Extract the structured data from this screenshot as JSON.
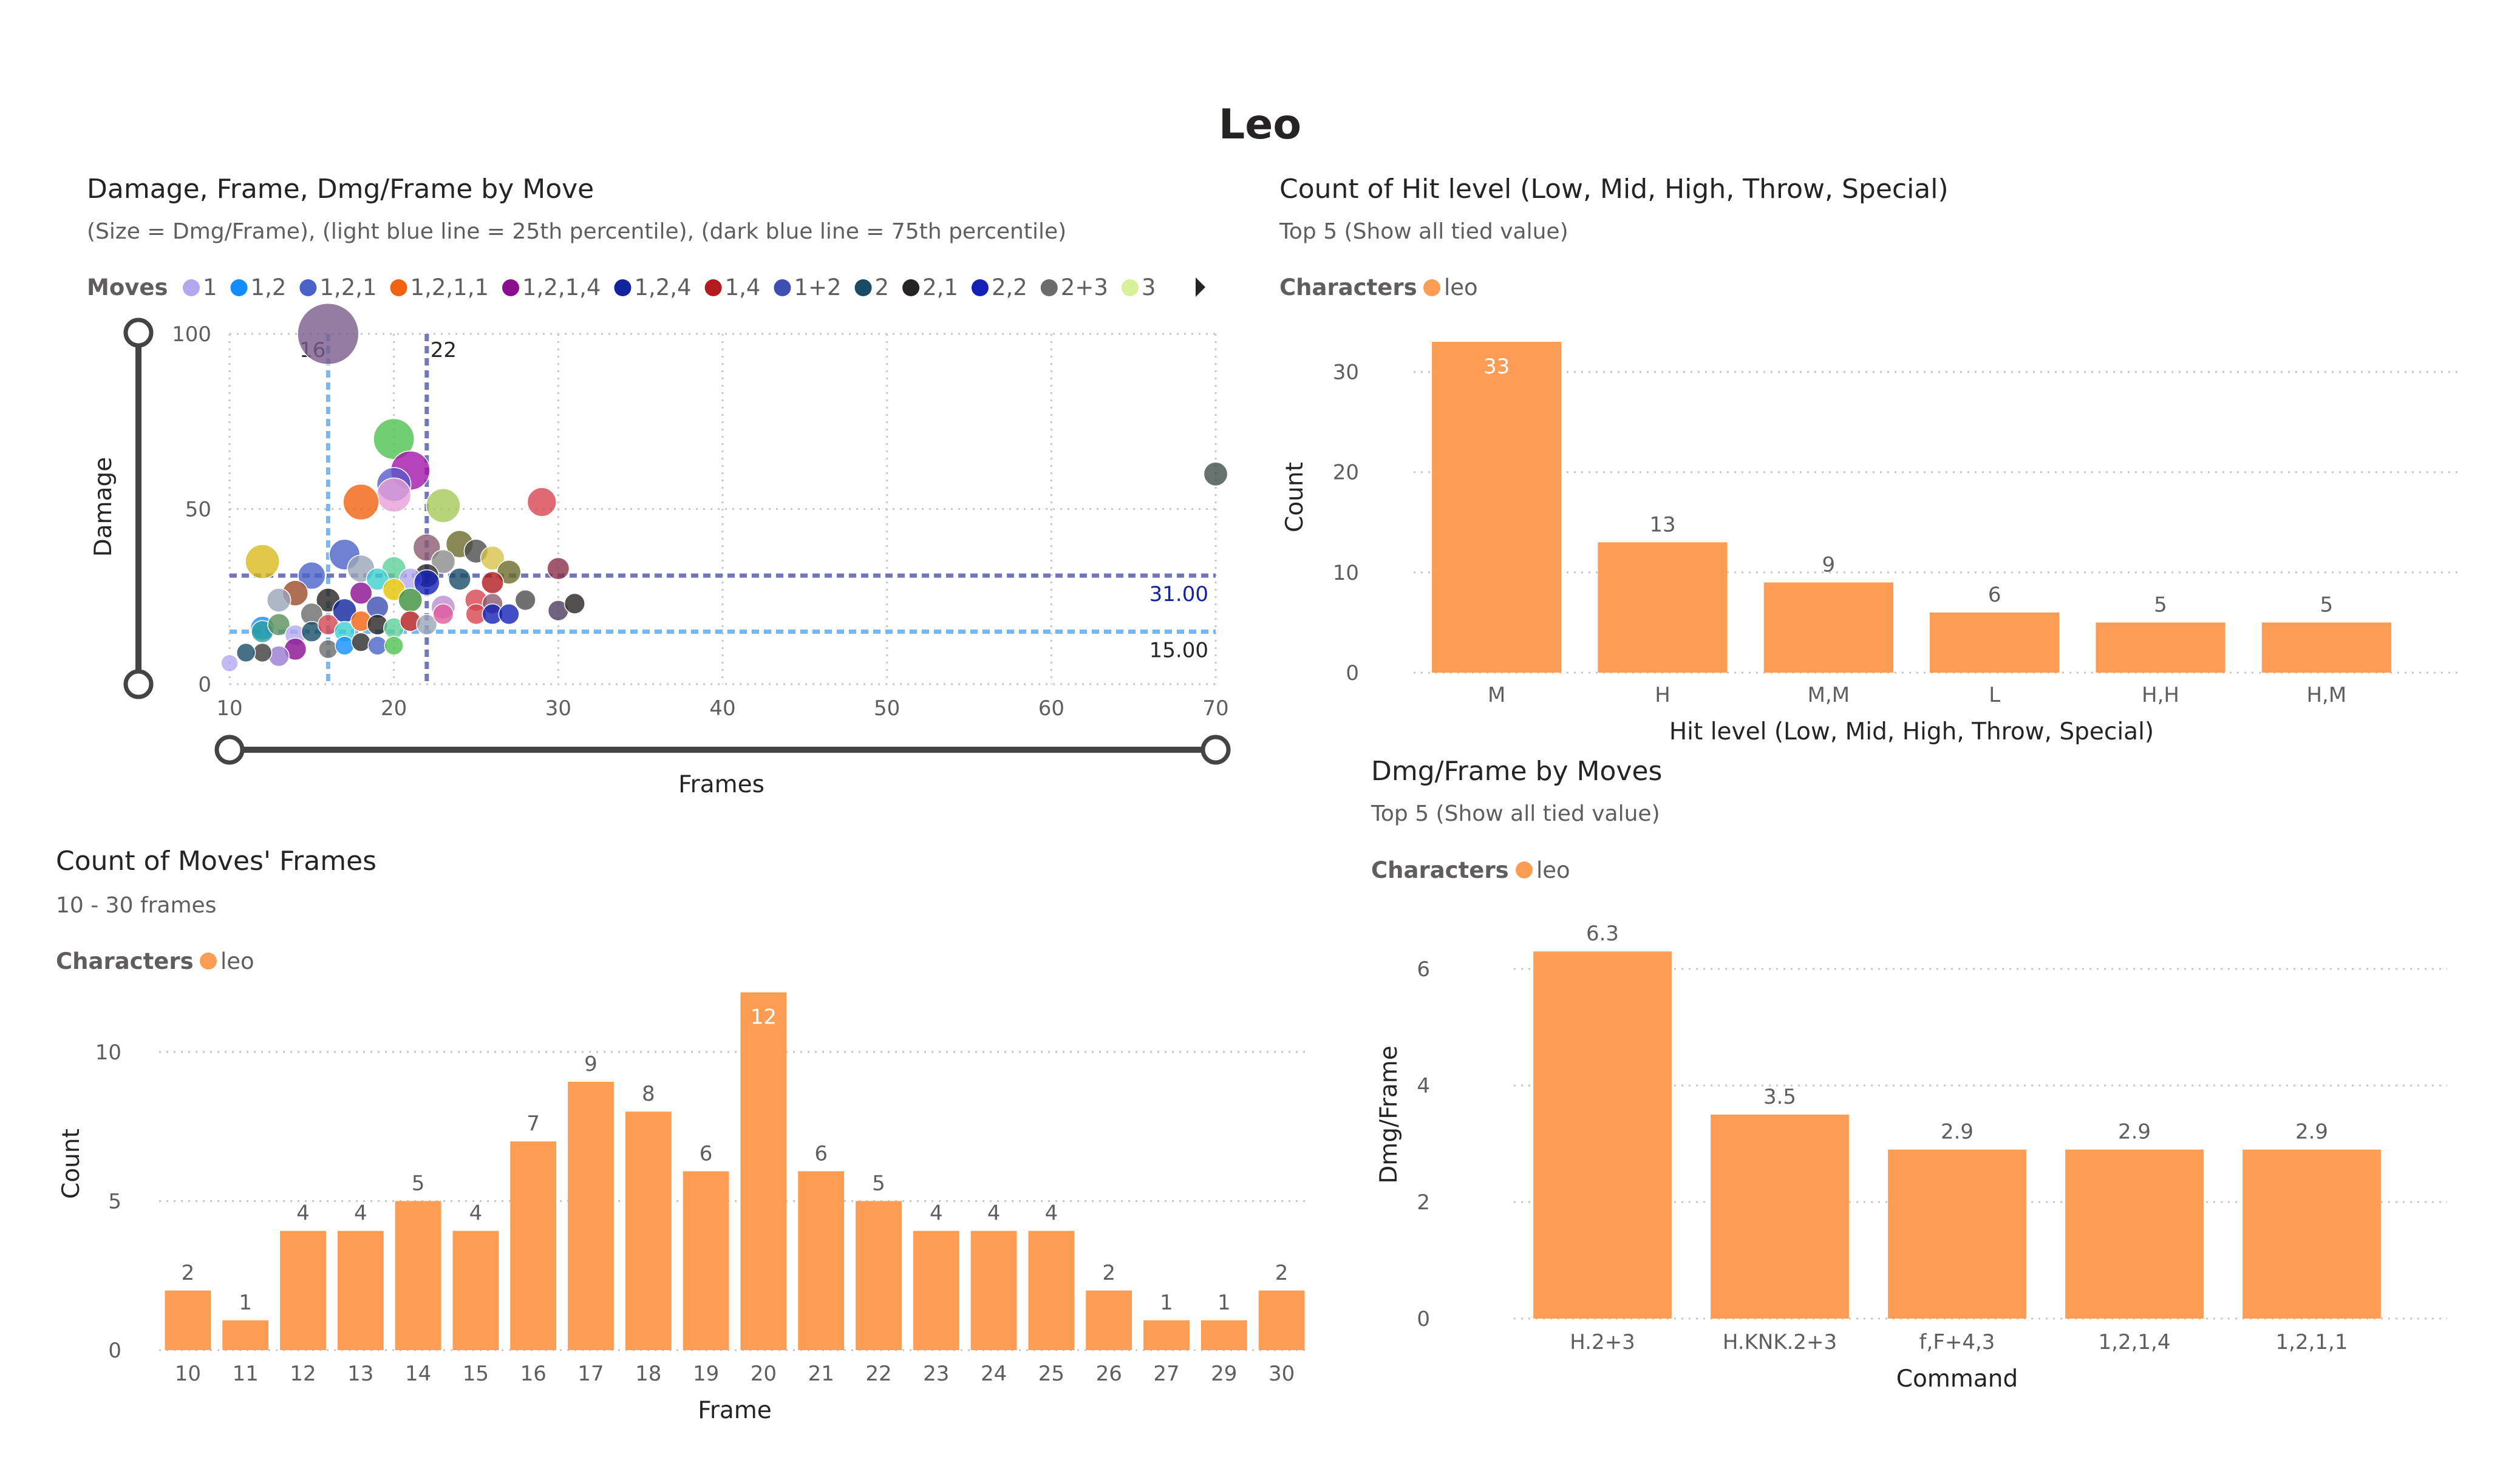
{
  "page_title": "Leo",
  "colors": {
    "bar": "#fd9d53",
    "q25_line": "#74b9f5",
    "q75_line": "#7077bf",
    "slider": "#444444"
  },
  "scatter": {
    "title": "Damage, Frame, Dmg/Frame by Move",
    "subtitle": "(Size = Dmg/Frame), (light blue line = 25th percentile), (dark blue line = 75th percentile)",
    "legend_title": "Moves",
    "legend_more_icon": "caret-right-icon",
    "legend": [
      {
        "name": "1",
        "color": "#b4a7f0"
      },
      {
        "name": "1,2",
        "color": "#118dff"
      },
      {
        "name": "1,2,1",
        "color": "#4a62c8"
      },
      {
        "name": "1,2,1,1",
        "color": "#f2620f"
      },
      {
        "name": "1,2,1,4",
        "color": "#8a0e8e"
      },
      {
        "name": "1,2,4",
        "color": "#12239e"
      },
      {
        "name": "1,4",
        "color": "#b31b1e"
      },
      {
        "name": "1+2",
        "color": "#3d4fb3"
      },
      {
        "name": "2",
        "color": "#194b66"
      },
      {
        "name": "2,1",
        "color": "#252423"
      },
      {
        "name": "2,2",
        "color": "#1420b5"
      },
      {
        "name": "2+3",
        "color": "#6b6b6b"
      },
      {
        "name": "3",
        "color": "#d7f09a"
      }
    ],
    "q25_x_label": "16",
    "q75_x_label": "22",
    "q75_y_label": "31.00",
    "q25_y_label": "15.00"
  },
  "hitlevel": {
    "title": "Count of Hit level (Low, Mid, High, Throw, Special)",
    "subtitle": "Top 5 (Show all tied value)",
    "legend_title": "Characters",
    "legend_item": "leo"
  },
  "frames": {
    "title": "Count of Moves' Frames",
    "subtitle": "10 - 30 frames",
    "legend_title": "Characters",
    "legend_item": "leo"
  },
  "dmgframe": {
    "title": "Dmg/Frame by Moves",
    "subtitle": "Top 5 (Show all tied value)",
    "legend_title": "Characters",
    "legend_item": "leo"
  },
  "chart_data": [
    {
      "type": "scatter",
      "title": "Damage, Frame, Dmg/Frame by Move",
      "xlabel": "Frames",
      "ylabel": "Damage",
      "xlim": [
        10,
        70
      ],
      "ylim": [
        0,
        100
      ],
      "xticks": [
        "10",
        "20",
        "30",
        "40",
        "50",
        "60",
        "70"
      ],
      "yticks": [
        "0",
        "50",
        "100"
      ],
      "reference_lines": {
        "x_25th": 16,
        "x_75th": 22,
        "y_75th": 31,
        "y_25th": 15
      },
      "points": [
        {
          "x": 16,
          "y": 100,
          "s": 3.6,
          "c": "#7a5b8c"
        },
        {
          "x": 20,
          "y": 70,
          "s": 2.4,
          "c": "#4fc24f"
        },
        {
          "x": 21,
          "y": 61,
          "s": 2.3,
          "c": "#a314a8"
        },
        {
          "x": 20,
          "y": 57,
          "s": 2.0,
          "c": "#5a59c9"
        },
        {
          "x": 20,
          "y": 54,
          "s": 2.0,
          "c": "#e6a0d6"
        },
        {
          "x": 18,
          "y": 52,
          "s": 2.1,
          "c": "#f2620f"
        },
        {
          "x": 23,
          "y": 51,
          "s": 2.0,
          "c": "#a5c95a"
        },
        {
          "x": 29,
          "y": 52,
          "s": 1.7,
          "c": "#d64550"
        },
        {
          "x": 70,
          "y": 60,
          "s": 1.4,
          "c": "#3f4f4a"
        },
        {
          "x": 12,
          "y": 35,
          "s": 2.0,
          "c": "#d9b91c"
        },
        {
          "x": 17,
          "y": 37,
          "s": 1.8,
          "c": "#4a62c8"
        },
        {
          "x": 15,
          "y": 31,
          "s": 1.6,
          "c": "#4a62c8"
        },
        {
          "x": 18,
          "y": 33,
          "s": 1.6,
          "c": "#9aa5b8"
        },
        {
          "x": 22,
          "y": 39,
          "s": 1.6,
          "c": "#8b5a6f"
        },
        {
          "x": 24,
          "y": 40,
          "s": 1.6,
          "c": "#6b6b2a"
        },
        {
          "x": 25,
          "y": 38,
          "s": 1.4,
          "c": "#4c4c4c"
        },
        {
          "x": 26,
          "y": 36,
          "s": 1.4,
          "c": "#d7c24a"
        },
        {
          "x": 27,
          "y": 32,
          "s": 1.4,
          "c": "#6b6b2a"
        },
        {
          "x": 30,
          "y": 33,
          "s": 1.3,
          "c": "#8a2f4a"
        },
        {
          "x": 23,
          "y": 35,
          "s": 1.4,
          "c": "#8c8c8c"
        },
        {
          "x": 20,
          "y": 33,
          "s": 1.4,
          "c": "#5fcf9a"
        },
        {
          "x": 22,
          "y": 31,
          "s": 1.4,
          "c": "#2b2b2b"
        },
        {
          "x": 21,
          "y": 30,
          "s": 1.3,
          "c": "#b4a7f0"
        },
        {
          "x": 19,
          "y": 30,
          "s": 1.3,
          "c": "#3dcfd0"
        },
        {
          "x": 22,
          "y": 29,
          "s": 1.5,
          "c": "#1420b5"
        },
        {
          "x": 24,
          "y": 30,
          "s": 1.3,
          "c": "#194b66"
        },
        {
          "x": 26,
          "y": 29,
          "s": 1.3,
          "c": "#b31b1e"
        },
        {
          "x": 20,
          "y": 27,
          "s": 1.3,
          "c": "#e2c400"
        },
        {
          "x": 18,
          "y": 26,
          "s": 1.3,
          "c": "#8a0e8e"
        },
        {
          "x": 16,
          "y": 24,
          "s": 1.4,
          "c": "#252423"
        },
        {
          "x": 14,
          "y": 26,
          "s": 1.5,
          "c": "#9a4b2a"
        },
        {
          "x": 13,
          "y": 24,
          "s": 1.4,
          "c": "#9aa5b8"
        },
        {
          "x": 17,
          "y": 21,
          "s": 1.4,
          "c": "#12239e"
        },
        {
          "x": 21,
          "y": 24,
          "s": 1.4,
          "c": "#3c8e3c"
        },
        {
          "x": 23,
          "y": 22,
          "s": 1.4,
          "c": "#ba8fd0"
        },
        {
          "x": 25,
          "y": 24,
          "s": 1.3,
          "c": "#d64550"
        },
        {
          "x": 26,
          "y": 23,
          "s": 1.2,
          "c": "#8b5a6f"
        },
        {
          "x": 28,
          "y": 24,
          "s": 1.2,
          "c": "#4c4c4c"
        },
        {
          "x": 19,
          "y": 22,
          "s": 1.3,
          "c": "#3d4fb3"
        },
        {
          "x": 15,
          "y": 20,
          "s": 1.3,
          "c": "#6b6b6b"
        },
        {
          "x": 12,
          "y": 16,
          "s": 1.4,
          "c": "#118dff"
        },
        {
          "x": 12,
          "y": 15,
          "s": 1.3,
          "c": "#2b9e9e"
        },
        {
          "x": 13,
          "y": 17,
          "s": 1.3,
          "c": "#5a8f5a"
        },
        {
          "x": 14,
          "y": 14,
          "s": 1.2,
          "c": "#b4a7f0"
        },
        {
          "x": 15,
          "y": 15,
          "s": 1.2,
          "c": "#194b66"
        },
        {
          "x": 16,
          "y": 17,
          "s": 1.2,
          "c": "#d64550"
        },
        {
          "x": 17,
          "y": 15,
          "s": 1.2,
          "c": "#3dcfd0"
        },
        {
          "x": 18,
          "y": 18,
          "s": 1.2,
          "c": "#f2620f"
        },
        {
          "x": 19,
          "y": 17,
          "s": 1.2,
          "c": "#252423"
        },
        {
          "x": 20,
          "y": 16,
          "s": 1.2,
          "c": "#5fcf9a"
        },
        {
          "x": 21,
          "y": 18,
          "s": 1.2,
          "c": "#b31b1e"
        },
        {
          "x": 22,
          "y": 17,
          "s": 1.2,
          "c": "#9aa5b8"
        },
        {
          "x": 23,
          "y": 20,
          "s": 1.2,
          "c": "#e05a9a"
        },
        {
          "x": 25,
          "y": 20,
          "s": 1.2,
          "c": "#d64550"
        },
        {
          "x": 26,
          "y": 20,
          "s": 1.2,
          "c": "#1420b5"
        },
        {
          "x": 27,
          "y": 20,
          "s": 1.2,
          "c": "#1420b5"
        },
        {
          "x": 30,
          "y": 21,
          "s": 1.2,
          "c": "#4c3c5c"
        },
        {
          "x": 31,
          "y": 23,
          "s": 1.2,
          "c": "#252423"
        },
        {
          "x": 14,
          "y": 10,
          "s": 1.3,
          "c": "#8a0e8e"
        },
        {
          "x": 13,
          "y": 8,
          "s": 1.2,
          "c": "#9a7bd0"
        },
        {
          "x": 12,
          "y": 9,
          "s": 1.1,
          "c": "#3c3c3c"
        },
        {
          "x": 11,
          "y": 9,
          "s": 1.1,
          "c": "#194b66"
        },
        {
          "x": 16,
          "y": 10,
          "s": 1.1,
          "c": "#6b6b6b"
        },
        {
          "x": 17,
          "y": 11,
          "s": 1.1,
          "c": "#118dff"
        },
        {
          "x": 18,
          "y": 12,
          "s": 1.1,
          "c": "#2b2b2b"
        },
        {
          "x": 19,
          "y": 11,
          "s": 1.1,
          "c": "#4a62c8"
        },
        {
          "x": 20,
          "y": 11,
          "s": 1.1,
          "c": "#4fc24f"
        },
        {
          "x": 10,
          "y": 6,
          "s": 1.0,
          "c": "#b4a7f0"
        }
      ]
    },
    {
      "type": "bar",
      "title": "Count of Hit level (Low, Mid, High, Throw, Special)",
      "xlabel": "Hit level (Low, Mid, High, Throw, Special)",
      "ylabel": "Count",
      "categories": [
        "M",
        "H",
        "M,M",
        "L",
        "H,H",
        "H,M"
      ],
      "values": [
        33,
        13,
        9,
        6,
        5,
        5
      ],
      "ylim": [
        0,
        35
      ],
      "yticks": [
        "0",
        "10",
        "20",
        "30"
      ],
      "series": [
        {
          "name": "leo",
          "values": [
            33,
            13,
            9,
            6,
            5,
            5
          ]
        }
      ]
    },
    {
      "type": "bar",
      "title": "Count of Moves' Frames",
      "xlabel": "Frame",
      "ylabel": "Count",
      "categories": [
        "10",
        "11",
        "12",
        "13",
        "14",
        "15",
        "16",
        "17",
        "18",
        "19",
        "20",
        "21",
        "22",
        "23",
        "24",
        "25",
        "26",
        "27",
        "29",
        "30"
      ],
      "values": [
        2,
        1,
        4,
        4,
        5,
        4,
        7,
        9,
        8,
        6,
        12,
        6,
        5,
        4,
        4,
        4,
        2,
        1,
        1,
        2
      ],
      "ylim": [
        0,
        12.5
      ],
      "yticks": [
        "0",
        "5",
        "10"
      ],
      "series": [
        {
          "name": "leo",
          "values": [
            2,
            1,
            4,
            4,
            5,
            4,
            7,
            9,
            8,
            6,
            12,
            6,
            5,
            4,
            4,
            4,
            2,
            1,
            1,
            2
          ]
        }
      ]
    },
    {
      "type": "bar",
      "title": "Dmg/Frame by Moves",
      "xlabel": "Command",
      "ylabel": "Dmg/Frame",
      "categories": [
        "H.2+3",
        "H.KNK.2+3",
        "f,F+4,3",
        "1,2,1,4",
        "1,2,1,1"
      ],
      "values": [
        6.3,
        3.5,
        2.9,
        2.9,
        2.9
      ],
      "ylim": [
        0,
        7
      ],
      "yticks": [
        "0",
        "2",
        "4",
        "6"
      ],
      "series": [
        {
          "name": "leo",
          "values": [
            6.3,
            3.5,
            2.9,
            2.9,
            2.9
          ]
        }
      ]
    }
  ]
}
